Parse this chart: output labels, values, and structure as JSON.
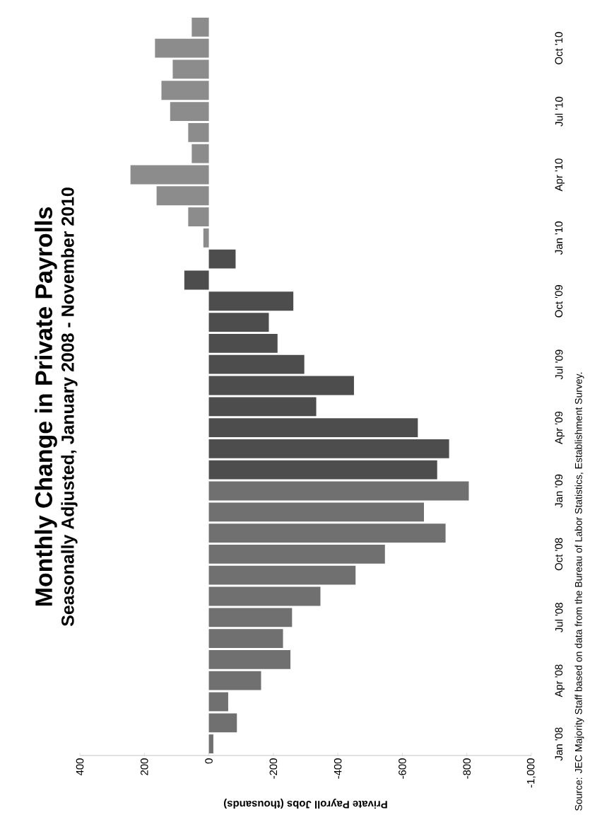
{
  "chart_data": {
    "type": "bar",
    "orientation": "horizontal",
    "title": "Monthly Change in Private Payrolls",
    "subtitle": "Seasonally Adjusted, January 2008 - November 2010",
    "xlabel": "Private Payroll Jobs (thousands)",
    "annotations": [
      "Source: JEC Majority Staff based on data from the Bureau of Labor Statistics, Establishment Survey."
    ],
    "categories": [
      null,
      "Oct '10",
      null,
      null,
      "Jul '10",
      null,
      null,
      "Apr '10",
      null,
      null,
      "Jan '10",
      null,
      null,
      "Oct '09",
      null,
      null,
      "Jul '09",
      null,
      null,
      "Apr '09",
      null,
      null,
      "Jan '09",
      null,
      null,
      "Oct '08",
      null,
      null,
      "Jul '08",
      null,
      null,
      "Apr '08",
      null,
      null,
      "Jan '08"
    ],
    "values": [
      53,
      167,
      112,
      147,
      120,
      64,
      53,
      243,
      162,
      64,
      17,
      -83,
      76,
      -262,
      -186,
      -213,
      -296,
      -450,
      -333,
      -648,
      -745,
      -708,
      -806,
      -667,
      -734,
      -546,
      -455,
      -346,
      -258,
      -230,
      -253,
      -162,
      -60,
      -87,
      -14
    ],
    "colors": [
      "#8c8c8c",
      "#8c8c8c",
      "#8c8c8c",
      "#8c8c8c",
      "#8c8c8c",
      "#8c8c8c",
      "#8c8c8c",
      "#8c8c8c",
      "#8c8c8c",
      "#8c8c8c",
      "#8c8c8c",
      "#4d4d4d",
      "#4d4d4d",
      "#4d4d4d",
      "#4d4d4d",
      "#4d4d4d",
      "#4d4d4d",
      "#4d4d4d",
      "#4d4d4d",
      "#4d4d4d",
      "#4d4d4d",
      "#4d4d4d",
      "#707070",
      "#707070",
      "#707070",
      "#707070",
      "#707070",
      "#707070",
      "#707070",
      "#707070",
      "#707070",
      "#707070",
      "#707070",
      "#707070",
      "#707070"
    ],
    "xlim": [
      400,
      -1000
    ],
    "xticks": [
      400,
      200,
      0,
      -200,
      -400,
      -600,
      -800,
      {
        "value": -1000,
        "label": "-1,000"
      }
    ]
  }
}
